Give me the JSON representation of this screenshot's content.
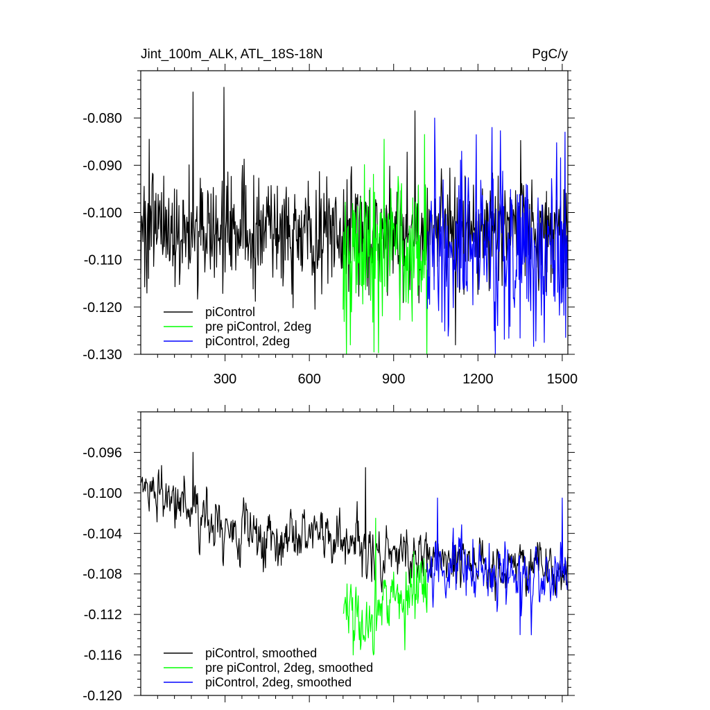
{
  "title_left": "Jint_100m_ALK, ATL_18S-18N",
  "title_right": "PgC/y",
  "colors": {
    "black": "#000000",
    "green": "#00ff00",
    "blue": "#0000ff"
  },
  "chart_data": [
    {
      "type": "line",
      "xlim": [
        0,
        1520
      ],
      "ylim": [
        -0.13,
        -0.07
      ],
      "xticks": [
        300,
        600,
        900,
        1200,
        1500
      ],
      "xtick_labels": [
        "300",
        "600",
        "900",
        "1200",
        "1500"
      ],
      "yticks": [
        -0.13,
        -0.12,
        -0.11,
        -0.1,
        -0.09,
        -0.08
      ],
      "ytick_labels": [
        "-0.130",
        "-0.120",
        "-0.110",
        "-0.100",
        "-0.090",
        "-0.080"
      ],
      "legend_position": "bottom-left",
      "series": [
        {
          "name": "piControl",
          "color": "#000000",
          "x_range": [
            0,
            1520
          ],
          "mean": -0.104,
          "std": 0.006,
          "peaks": [
            [
              30,
              -0.0845
            ],
            [
              185,
              -0.0745
            ],
            [
              295,
              -0.0735
            ],
            [
              975,
              -0.0785
            ],
            [
              1120,
              -0.128
            ]
          ]
        },
        {
          "name": "pre piControl, 2deg",
          "color": "#00ff00",
          "x_range": [
            720,
            1020
          ],
          "mean": -0.108,
          "std": 0.0085,
          "peaks": [
            [
              745,
              -0.128
            ],
            [
              830,
              -0.1295
            ],
            [
              865,
              -0.0845
            ],
            [
              1010,
              -0.0835
            ]
          ]
        },
        {
          "name": "piControl, 2deg",
          "color": "#0000ff",
          "x_range": [
            1020,
            1520
          ],
          "mean": -0.108,
          "std": 0.0085,
          "peaks": [
            [
              1045,
              -0.08
            ],
            [
              1250,
              -0.082
            ],
            [
              1510,
              -0.083
            ]
          ]
        }
      ]
    },
    {
      "type": "line",
      "xlim": [
        0,
        1520
      ],
      "ylim": [
        -0.12,
        -0.092
      ],
      "xticks": [
        300,
        600,
        900,
        1200,
        1500
      ],
      "yticks": [
        -0.12,
        -0.116,
        -0.112,
        -0.108,
        -0.104,
        -0.1,
        -0.096
      ],
      "ytick_labels": [
        "-0.120",
        "-0.116",
        "-0.112",
        "-0.108",
        "-0.104",
        "-0.100",
        "-0.096"
      ],
      "legend_position": "bottom-left",
      "series": [
        {
          "name": "piControl, smoothed",
          "color": "#000000",
          "x_range": [
            0,
            1520
          ],
          "trend": [
            [
              0,
              -0.0995
            ],
            [
              100,
              -0.1005
            ],
            [
              300,
              -0.1035
            ],
            [
              600,
              -0.1045
            ],
            [
              1200,
              -0.107
            ],
            [
              1520,
              -0.107
            ]
          ],
          "std": 0.0018,
          "peaks": [
            [
              185,
              -0.096
            ],
            [
              800,
              -0.0975
            ]
          ]
        },
        {
          "name": "pre piControl, 2deg, smoothed",
          "color": "#00ff00",
          "x_range": [
            720,
            1020
          ],
          "trend": [
            [
              720,
              -0.1125
            ],
            [
              800,
              -0.1135
            ],
            [
              900,
              -0.1105
            ],
            [
              1020,
              -0.109
            ]
          ],
          "std": 0.0022,
          "peaks": [
            [
              755,
              -0.116
            ],
            [
              835,
              -0.1025
            ],
            [
              940,
              -0.1155
            ]
          ]
        },
        {
          "name": "piControl, 2deg, smoothed",
          "color": "#0000ff",
          "x_range": [
            1020,
            1520
          ],
          "trend": [
            [
              1020,
              -0.1075
            ],
            [
              1200,
              -0.108
            ],
            [
              1520,
              -0.108
            ]
          ],
          "std": 0.0022,
          "peaks": [
            [
              1055,
              -0.1005
            ],
            [
              1500,
              -0.1005
            ],
            [
              1350,
              -0.114
            ]
          ]
        }
      ]
    }
  ]
}
